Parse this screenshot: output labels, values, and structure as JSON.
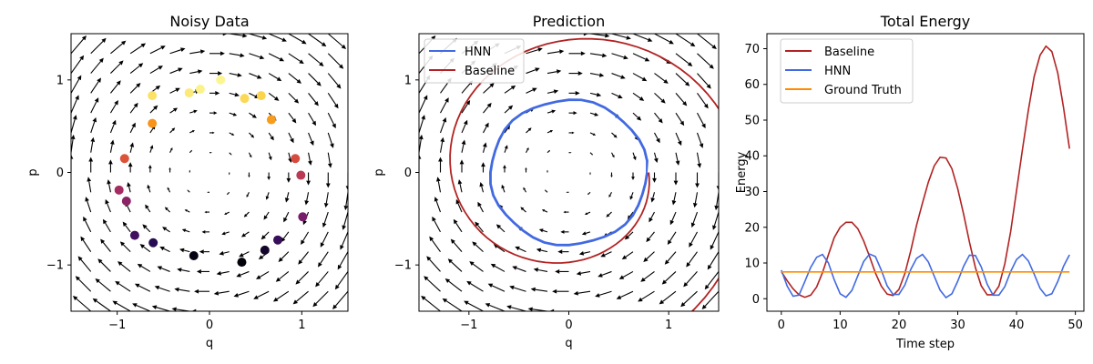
{
  "chart_data": [
    {
      "type": "scatter",
      "title": "Noisy Data",
      "xlabel": "q",
      "ylabel": "p",
      "xlim": [
        -1.5,
        1.5
      ],
      "ylim": [
        -1.5,
        1.5
      ],
      "xticks": [
        -1,
        0,
        1
      ],
      "yticks": [
        -1,
        0,
        1
      ],
      "xtick_labels": [
        "−1",
        "0",
        "1"
      ],
      "ytick_labels": [
        "−1",
        "0",
        "1"
      ],
      "colormap": "inferno",
      "points": [
        {
          "q": 0.12,
          "p": 1.0,
          "c": 0.98
        },
        {
          "q": -0.1,
          "p": 0.9,
          "c": 0.97
        },
        {
          "q": -0.22,
          "p": 0.86,
          "c": 0.95
        },
        {
          "q": -0.62,
          "p": 0.83,
          "c": 0.93
        },
        {
          "q": 0.38,
          "p": 0.8,
          "c": 0.91
        },
        {
          "q": 0.56,
          "p": 0.83,
          "c": 0.9
        },
        {
          "q": 0.67,
          "p": 0.57,
          "c": 0.78
        },
        {
          "q": -0.62,
          "p": 0.53,
          "c": 0.76
        },
        {
          "q": -0.92,
          "p": 0.15,
          "c": 0.6
        },
        {
          "q": 0.93,
          "p": 0.15,
          "c": 0.58
        },
        {
          "q": 0.99,
          "p": -0.03,
          "c": 0.5
        },
        {
          "q": -0.98,
          "p": -0.19,
          "c": 0.44
        },
        {
          "q": -0.9,
          "p": -0.31,
          "c": 0.38
        },
        {
          "q": 1.01,
          "p": -0.48,
          "c": 0.33
        },
        {
          "q": -0.81,
          "p": -0.68,
          "c": 0.2
        },
        {
          "q": 0.74,
          "p": -0.73,
          "c": 0.18
        },
        {
          "q": -0.61,
          "p": -0.76,
          "c": 0.14
        },
        {
          "q": 0.6,
          "p": -0.84,
          "c": 0.07
        },
        {
          "q": -0.17,
          "p": -0.9,
          "c": 0.03
        },
        {
          "q": 0.35,
          "p": -0.97,
          "c": 0.01
        }
      ],
      "vector_field": "quiver"
    },
    {
      "type": "line",
      "title": "Prediction",
      "xlabel": "q",
      "ylabel": "p",
      "xlim": [
        -1.5,
        1.5
      ],
      "ylim": [
        -1.5,
        1.5
      ],
      "xticks": [
        -1,
        0,
        1
      ],
      "yticks": [
        -1,
        0,
        1
      ],
      "xtick_labels": [
        "−1",
        "0",
        "1"
      ],
      "ytick_labels": [
        "−1",
        "0",
        "1"
      ],
      "vector_field": "quiver",
      "legend_position": "upper-left",
      "series": [
        {
          "name": "HNN",
          "color": "#4169e1",
          "shape": "closed-loop",
          "radius": 0.78
        },
        {
          "name": "Baseline",
          "color": "#b22222",
          "shape": "outward-spiral",
          "radius_start": 0.8,
          "radius_end": 2.2
        }
      ]
    },
    {
      "type": "line",
      "title": "Total Energy",
      "xlabel": "Time step",
      "ylabel": "Energy",
      "xlim": [
        -2.45,
        51.45
      ],
      "ylim": [
        -3.5,
        74.2
      ],
      "xticks": [
        0,
        10,
        20,
        30,
        40,
        50
      ],
      "yticks": [
        0,
        10,
        20,
        30,
        40,
        50,
        60,
        70
      ],
      "legend_position": "upper-left",
      "x": [
        0,
        1,
        2,
        3,
        4,
        5,
        6,
        7,
        8,
        9,
        10,
        11,
        12,
        13,
        14,
        15,
        16,
        17,
        18,
        19,
        20,
        21,
        22,
        23,
        24,
        25,
        26,
        27,
        28,
        29,
        30,
        31,
        32,
        33,
        34,
        35,
        36,
        37,
        38,
        39,
        40,
        41,
        42,
        43,
        44,
        45,
        46,
        47,
        48,
        49
      ],
      "series": [
        {
          "name": "Baseline",
          "color": "#b22222",
          "values": [
            7.6,
            5,
            2.8,
            1.1,
            0.4,
            1,
            3.3,
            7.3,
            12.3,
            17.1,
            20,
            21.4,
            21.4,
            19.6,
            16.2,
            11.8,
            7.2,
            3.5,
            1.3,
            0.9,
            2.6,
            7,
            13.4,
            20.6,
            26.8,
            32.6,
            37.2,
            39.6,
            39.4,
            36.4,
            30.8,
            23.6,
            15.8,
            8.7,
            3.6,
            1.1,
            1.1,
            3.5,
            9.8,
            18.8,
            30.3,
            41.7,
            52.7,
            62.2,
            68.2,
            70.7,
            69.2,
            63.2,
            53.4,
            42
          ]
        },
        {
          "name": "HNN",
          "color": "#4169e1",
          "values": [
            8,
            3.5,
            0.7,
            1,
            4.8,
            8.8,
            11.6,
            12.4,
            10,
            5.3,
            1.4,
            0.4,
            2.3,
            6.4,
            10.4,
            12.5,
            11.8,
            8,
            3.6,
            1.2,
            1.2,
            3.8,
            8.2,
            11.3,
            12.4,
            10.3,
            6.3,
            2.4,
            0.3,
            1.4,
            4.9,
            9.1,
            12.2,
            12.1,
            8.9,
            4.1,
            1,
            1,
            3.4,
            7.6,
            11,
            12.4,
            10.6,
            6.9,
            2.9,
            0.8,
            1.4,
            4.8,
            9.1,
            12.3
          ]
        },
        {
          "name": "Ground Truth",
          "color": "#ff8c00",
          "values": [
            7.5,
            7.5,
            7.5,
            7.5,
            7.5,
            7.5,
            7.5,
            7.5,
            7.5,
            7.5,
            7.5,
            7.5,
            7.5,
            7.5,
            7.5,
            7.5,
            7.5,
            7.5,
            7.5,
            7.5,
            7.5,
            7.5,
            7.5,
            7.5,
            7.5,
            7.5,
            7.5,
            7.5,
            7.5,
            7.5,
            7.5,
            7.5,
            7.5,
            7.5,
            7.5,
            7.5,
            7.5,
            7.5,
            7.5,
            7.5,
            7.5,
            7.5,
            7.5,
            7.5,
            7.5,
            7.5,
            7.5,
            7.5,
            7.5,
            7.5
          ]
        }
      ]
    }
  ]
}
